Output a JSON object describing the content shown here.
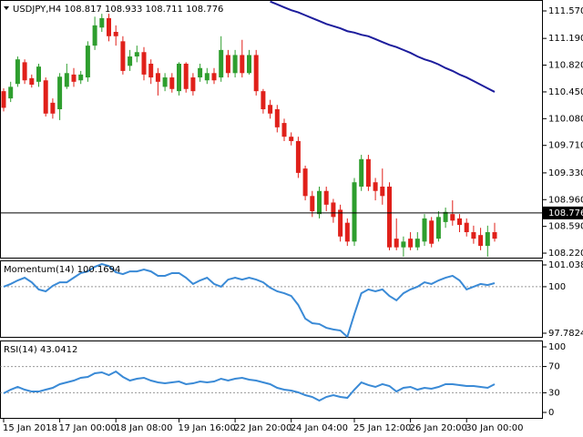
{
  "chart_data": [
    {
      "type": "candlestick",
      "title": "USDJPY,H4  108.817 108.933 108.711 108.776",
      "categories": [
        "15 Jan 2018",
        null,
        null,
        null,
        null,
        null,
        null,
        null,
        "17 Jan 00:00",
        null,
        null,
        null,
        null,
        null,
        null,
        null,
        "18 Jan 08:00",
        null,
        null,
        null,
        null,
        null,
        null,
        null,
        null,
        "19 Jan 16:00",
        null,
        null,
        null,
        null,
        null,
        null,
        null,
        "22 Jan 20:00",
        null,
        null,
        null,
        null,
        null,
        null,
        null,
        "24 Jan 04:00",
        null,
        null,
        null,
        null,
        null,
        null,
        null,
        null,
        "25 Jan 12:00",
        null,
        null,
        null,
        null,
        null,
        null,
        null,
        "26 Jan 20:00",
        null,
        null,
        null,
        null,
        null,
        null,
        null,
        "30 Jan 00:00",
        null,
        null,
        null,
        null
      ],
      "open": [
        110.46,
        110.36,
        110.56,
        110.86,
        110.64,
        110.59,
        110.61,
        110.3,
        110.21,
        110.52,
        110.69,
        110.61,
        110.65,
        111.09,
        111.34,
        111.47,
        111.28,
        111.15,
        110.81,
        110.94,
        111.0,
        110.84,
        110.71,
        110.52,
        110.65,
        110.46,
        110.84,
        110.65,
        110.65,
        110.61,
        110.71,
        110.65,
        110.96,
        110.71,
        110.96,
        110.71,
        110.96,
        110.46,
        110.27,
        110.21,
        110.02,
        109.83,
        109.77,
        109.39,
        109.01,
        108.76,
        109.08,
        108.92,
        108.82,
        108.64,
        108.38,
        109.14,
        109.52,
        109.2,
        109.14,
        109.14,
        108.42,
        108.3,
        108.42,
        108.3,
        108.38,
        108.67,
        108.42,
        108.65,
        108.76,
        108.7,
        108.64,
        108.51,
        108.47,
        108.32,
        108.51
      ],
      "high": [
        110.5,
        110.59,
        110.94,
        110.9,
        110.69,
        110.84,
        110.65,
        110.36,
        110.71,
        110.84,
        110.78,
        110.74,
        111.15,
        111.49,
        111.53,
        111.53,
        111.37,
        111.22,
        111.03,
        111.09,
        111.07,
        110.9,
        110.78,
        110.71,
        110.71,
        110.86,
        110.86,
        110.71,
        110.84,
        110.78,
        110.78,
        111.22,
        111.03,
        111.03,
        111.17,
        111.03,
        111.03,
        110.49,
        110.34,
        110.27,
        110.08,
        109.89,
        109.83,
        109.43,
        109.08,
        109.14,
        109.14,
        108.97,
        108.89,
        108.7,
        109.26,
        109.58,
        109.58,
        109.26,
        109.39,
        109.2,
        108.7,
        108.45,
        108.51,
        108.51,
        108.76,
        108.72,
        108.8,
        108.85,
        108.95,
        108.76,
        108.7,
        108.6,
        108.57,
        108.6,
        108.64
      ],
      "low": [
        110.18,
        110.31,
        110.52,
        110.56,
        110.51,
        110.52,
        110.11,
        110.08,
        110.06,
        110.49,
        110.52,
        110.56,
        110.59,
        111.03,
        111.28,
        111.15,
        111.09,
        110.69,
        110.74,
        110.86,
        110.61,
        110.56,
        110.4,
        110.46,
        110.44,
        110.4,
        110.44,
        110.4,
        110.59,
        110.56,
        110.56,
        110.59,
        110.65,
        110.65,
        110.65,
        110.69,
        110.4,
        110.15,
        110.08,
        109.89,
        109.77,
        109.71,
        109.26,
        108.95,
        108.72,
        108.7,
        108.8,
        108.64,
        108.38,
        108.32,
        108.32,
        109.08,
        109.08,
        108.95,
        108.89,
        108.26,
        108.26,
        108.17,
        108.26,
        108.26,
        108.32,
        108.3,
        108.38,
        108.57,
        108.6,
        108.51,
        108.45,
        108.35,
        108.26,
        108.17,
        108.38
      ],
      "close": [
        110.23,
        110.52,
        110.9,
        110.61,
        110.55,
        110.8,
        110.15,
        110.15,
        110.66,
        110.71,
        110.59,
        110.69,
        111.09,
        111.37,
        111.47,
        111.22,
        111.22,
        110.74,
        110.94,
        111.0,
        110.69,
        110.65,
        110.59,
        110.65,
        110.49,
        110.84,
        110.49,
        110.46,
        110.78,
        110.71,
        110.61,
        111.03,
        110.71,
        110.96,
        110.71,
        110.96,
        110.46,
        110.21,
        110.15,
        109.96,
        109.83,
        109.77,
        109.33,
        109.01,
        108.8,
        109.08,
        108.89,
        108.72,
        108.45,
        108.38,
        109.2,
        109.52,
        109.14,
        109.08,
        109.01,
        108.3,
        108.3,
        108.38,
        108.3,
        108.42,
        108.7,
        108.35,
        108.72,
        108.79,
        108.67,
        108.61,
        108.51,
        108.42,
        108.32,
        108.51,
        108.42
      ],
      "up_color": "#2e9e2e",
      "down_color": "#e0201a",
      "overlay": {
        "color": "#1c1c9c",
        "values": [
          null,
          null,
          null,
          null,
          null,
          null,
          null,
          null,
          null,
          null,
          null,
          null,
          null,
          null,
          null,
          null,
          null,
          null,
          null,
          null,
          null,
          null,
          null,
          null,
          null,
          null,
          null,
          null,
          null,
          null,
          null,
          null,
          null,
          null,
          null,
          null,
          null,
          null,
          111.7,
          111.66,
          111.62,
          111.58,
          111.55,
          111.51,
          111.47,
          111.43,
          111.39,
          111.36,
          111.33,
          111.29,
          111.27,
          111.24,
          111.22,
          111.18,
          111.14,
          111.1,
          111.07,
          111.03,
          110.99,
          110.94,
          110.9,
          110.87,
          110.83,
          110.78,
          110.74,
          110.69,
          110.65,
          110.6,
          110.55,
          110.5,
          110.45
        ]
      },
      "last_price": 108.776,
      "ylim": [
        108.145,
        111.721
      ],
      "yticks": [
        {
          "value": 111.57,
          "label": "111.570"
        },
        {
          "value": 111.19,
          "label": "111.190"
        },
        {
          "value": 110.82,
          "label": "110.820"
        },
        {
          "value": 110.45,
          "label": "110.450"
        },
        {
          "value": 110.08,
          "label": "110.080"
        },
        {
          "value": 109.71,
          "label": "109.710"
        },
        {
          "value": 109.33,
          "label": "109.330"
        },
        {
          "value": 108.96,
          "label": "108.960"
        },
        {
          "value": 108.59,
          "label": "108.590"
        },
        {
          "value": 108.22,
          "label": "108.220"
        }
      ]
    },
    {
      "type": "line",
      "title": "Momentum(14) 100.1694",
      "color": "#3a8ad6",
      "values": [
        100.0,
        100.13,
        100.3,
        100.43,
        100.21,
        99.87,
        99.78,
        100.04,
        100.21,
        100.21,
        100.43,
        100.65,
        100.73,
        100.95,
        101.08,
        100.99,
        100.69,
        100.6,
        100.73,
        100.73,
        100.82,
        100.73,
        100.52,
        100.52,
        100.65,
        100.65,
        100.43,
        100.13,
        100.3,
        100.43,
        100.13,
        100.0,
        100.34,
        100.43,
        100.34,
        100.43,
        100.34,
        100.21,
        99.95,
        99.78,
        99.69,
        99.56,
        99.13,
        98.48,
        98.26,
        98.22,
        98.04,
        97.96,
        97.91,
        97.61,
        98.69,
        99.69,
        99.87,
        99.78,
        99.87,
        99.56,
        99.35,
        99.69,
        99.87,
        100.0,
        100.21,
        100.13,
        100.3,
        100.43,
        100.52,
        100.3,
        99.87,
        100.0,
        100.13,
        100.08,
        100.17
      ],
      "ylim": [
        97.565,
        101.256
      ],
      "yticks": [
        101.0389,
        100,
        97.7824
      ],
      "levels": [
        100
      ]
    },
    {
      "type": "line",
      "title": "RSI(14) 43.0412",
      "color": "#3a8ad6",
      "values": [
        29.2,
        34.7,
        38.9,
        34.7,
        31.9,
        31.9,
        34.7,
        37.5,
        43.1,
        45.8,
        48.6,
        52.8,
        54.2,
        59.7,
        61.1,
        56.9,
        62.5,
        54.2,
        48.6,
        51.4,
        52.8,
        48.6,
        45.8,
        44.4,
        45.8,
        47.2,
        43.1,
        44.4,
        47.2,
        45.8,
        47.2,
        51.4,
        48.6,
        51.4,
        52.8,
        50,
        48.6,
        45.8,
        43.1,
        37.5,
        34.7,
        33.3,
        30.6,
        26.4,
        23.6,
        18.1,
        23.6,
        26.4,
        23.6,
        22.2,
        34.7,
        45.8,
        41.7,
        38.9,
        43.1,
        40.3,
        31.9,
        37.5,
        38.9,
        34.7,
        37.5,
        36.1,
        38.9,
        43.1,
        43.1,
        41.7,
        40.3,
        40.3,
        38.9,
        37.5,
        43.04
      ],
      "ylim": [
        -9.7,
        109.7
      ],
      "yticks": [
        100,
        70,
        30,
        0
      ],
      "levels": [
        70,
        30
      ]
    }
  ]
}
